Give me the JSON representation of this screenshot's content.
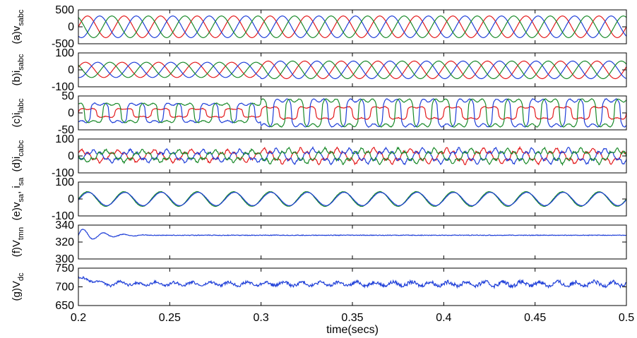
{
  "chart_data": [
    {
      "type": "line",
      "ylabel_main": "(a)v",
      "ylabel_sub": "sabc",
      "yticks": [
        "500",
        "0",
        "-500"
      ],
      "ylim": [
        -500,
        500
      ],
      "signal": {
        "kind": "three_phase",
        "amplitude": 320,
        "cycles": 15
      },
      "series": [
        {
          "name": "",
          "color": "#e31a1c",
          "phase_deg": 0
        },
        {
          "name": "",
          "color": "#1f3fd8",
          "phase_deg": -120
        },
        {
          "name": "",
          "color": "#1a8a2a",
          "phase_deg": 120
        }
      ]
    },
    {
      "type": "line",
      "ylabel_main": "(b)i",
      "ylabel_sub": "sabc",
      "yticks": [
        "100",
        "0",
        "-100"
      ],
      "ylim": [
        -100,
        100
      ],
      "signal": {
        "kind": "three_phase",
        "amplitude": 45,
        "cycles": 15,
        "step_time": 0.3,
        "amplitude_after": 52
      },
      "series": [
        {
          "name": "",
          "color": "#e31a1c",
          "phase_deg": 20
        },
        {
          "name": "",
          "color": "#1f3fd8",
          "phase_deg": -100
        },
        {
          "name": "",
          "color": "#1a8a2a",
          "phase_deg": 140
        }
      ]
    },
    {
      "type": "line",
      "ylabel_main": "(c)i",
      "ylabel_sub": "labc",
      "yticks": [
        "50",
        "0",
        "-50"
      ],
      "ylim": [
        -50,
        50
      ],
      "signal": {
        "kind": "square_like",
        "amplitude": 32,
        "cycles": 15,
        "step_time": 0.3,
        "amplitude_after": 46
      },
      "series": [
        {
          "name": "",
          "color": "#e31a1c",
          "phase_deg": 0,
          "scale": 0.45
        },
        {
          "name": "",
          "color": "#1f3fd8",
          "phase_deg": -120,
          "scale": 1
        },
        {
          "name": "",
          "color": "#1a8a2a",
          "phase_deg": 120,
          "scale": 1
        }
      ]
    },
    {
      "type": "line",
      "ylabel_main": "(d)i",
      "ylabel_sub": "cabc",
      "yticks": [
        "100",
        "0",
        "-100"
      ],
      "ylim": [
        -100,
        100
      ],
      "signal": {
        "kind": "three_phase_ripple",
        "amplitude": 28,
        "cycles": 15,
        "step_time": 0.3,
        "amplitude_after": 35
      },
      "series": [
        {
          "name": "",
          "color": "#e31a1c",
          "phase_deg": 60
        },
        {
          "name": "",
          "color": "#1f3fd8",
          "phase_deg": -60
        },
        {
          "name": "",
          "color": "#1a8a2a",
          "phase_deg": 180
        }
      ]
    },
    {
      "type": "line",
      "ylabel_main": "(e)v",
      "ylabel_sub": "sa",
      "ylabel_mid": ", i",
      "ylabel_sub2": "sa",
      "yticks": [
        "100",
        "0",
        "-100"
      ],
      "ylim": [
        -100,
        100
      ],
      "signal": {
        "kind": "two_sine",
        "amplitude": 40,
        "cycles": 15
      },
      "series": [
        {
          "name": "",
          "color": "#1a8a2a",
          "phase_deg": 0,
          "scale": 1.08
        },
        {
          "name": "",
          "color": "#1f3fd8",
          "phase_deg": -8,
          "scale": 0.98
        }
      ]
    },
    {
      "type": "line",
      "ylabel_main": "(f)V",
      "ylabel_sub": "tmn",
      "yticks": [
        "340",
        "320",
        "300"
      ],
      "ylim": [
        300,
        340
      ],
      "signal": {
        "kind": "settling",
        "steady": 328
      },
      "series": [
        {
          "name": "",
          "color": "#1f3fd8"
        }
      ]
    },
    {
      "type": "line",
      "ylabel_main": "(g)V",
      "ylabel_sub": "dc",
      "yticks": [
        "750",
        "700",
        "650"
      ],
      "ylim": [
        650,
        750
      ],
      "signal": {
        "kind": "ripple_dc",
        "steady": 708
      },
      "series": [
        {
          "name": "",
          "color": "#1f3fd8"
        }
      ]
    }
  ],
  "x_axis": {
    "ticks": [
      "0.2",
      "0.25",
      "0.3",
      "0.35",
      "0.4",
      "0.45",
      "0.5"
    ],
    "xlim": [
      0.2,
      0.5
    ],
    "label": "time(secs)"
  }
}
